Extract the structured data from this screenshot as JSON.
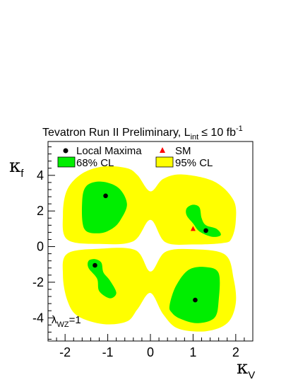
{
  "chart_data": {
    "type": "contour",
    "title": {
      "text": "Tevatron Run II Preliminary, L",
      "subscript": "int",
      "relation": "≤ 10 fb",
      "superscript": "-1"
    },
    "xlabel": {
      "symbol": "κ",
      "subscript": "V"
    },
    "ylabel": {
      "symbol": "κ",
      "subscript": "f"
    },
    "xlim": [
      -2.4,
      2.4
    ],
    "ylim": [
      -5.3,
      5.9
    ],
    "xticks": [
      -2,
      -1,
      0,
      1,
      2
    ],
    "yticks": [
      -4,
      -2,
      0,
      2,
      4
    ],
    "annotation": {
      "symbol": "λ",
      "subscript": "WZ",
      "suffix": "=1"
    },
    "legend": {
      "local_maxima": "Local Maxima",
      "sm": "SM",
      "cl68": "68% CL",
      "cl95": "95% CL"
    },
    "colors": {
      "cl95": "#ffff00",
      "cl68": "#00ee00",
      "sm": "#ff0000",
      "maxima": "#000000"
    },
    "local_maxima": [
      {
        "x": -1.05,
        "y": 2.85
      },
      {
        "x": 1.3,
        "y": 0.9
      },
      {
        "x": -1.3,
        "y": -1.05
      },
      {
        "x": 1.05,
        "y": -3.0
      }
    ],
    "sm_point": {
      "x": 1.0,
      "y": 1.0
    },
    "cl95_regions": [
      [
        [
          -1.95,
          0.4
        ],
        [
          -2.05,
          1.8
        ],
        [
          -1.95,
          3.2
        ],
        [
          -1.6,
          4.1
        ],
        [
          -1.1,
          4.5
        ],
        [
          -0.55,
          4.4
        ],
        [
          -0.3,
          4.0
        ],
        [
          0.0,
          3.1
        ],
        [
          0.3,
          3.8
        ],
        [
          0.75,
          4.05
        ],
        [
          1.5,
          3.65
        ],
        [
          1.95,
          2.6
        ],
        [
          2.0,
          1.4
        ],
        [
          1.9,
          0.45
        ],
        [
          1.7,
          0.2
        ],
        [
          1.0,
          0.12
        ],
        [
          0.35,
          0.25
        ],
        [
          0.0,
          1.5
        ],
        [
          -0.4,
          0.3
        ],
        [
          -1.2,
          0.15
        ]
      ],
      [
        [
          -1.95,
          -0.4
        ],
        [
          -2.05,
          -1.6
        ],
        [
          -1.95,
          -3.0
        ],
        [
          -1.7,
          -3.9
        ],
        [
          -1.1,
          -4.35
        ],
        [
          -0.55,
          -4.2
        ],
        [
          -0.3,
          -3.5
        ],
        [
          0.0,
          -2.6
        ],
        [
          0.3,
          -3.8
        ],
        [
          0.65,
          -4.6
        ],
        [
          1.3,
          -4.75
        ],
        [
          1.8,
          -4.3
        ],
        [
          2.0,
          -3.2
        ],
        [
          1.95,
          -1.8
        ],
        [
          1.75,
          -0.45
        ],
        [
          1.0,
          -0.15
        ],
        [
          0.35,
          -0.3
        ],
        [
          0.0,
          -1.4
        ],
        [
          -0.35,
          -0.2
        ],
        [
          -1.2,
          -0.12
        ]
      ]
    ],
    "cl68_regions": [
      [
        [
          -1.55,
          1.0
        ],
        [
          -1.6,
          2.5
        ],
        [
          -1.5,
          3.4
        ],
        [
          -1.15,
          3.65
        ],
        [
          -0.75,
          3.3
        ],
        [
          -0.55,
          2.4
        ],
        [
          -0.7,
          1.5
        ],
        [
          -0.9,
          1.0
        ],
        [
          -1.2,
          0.75
        ]
      ],
      [
        [
          0.85,
          2.15
        ],
        [
          1.0,
          2.35
        ],
        [
          1.15,
          2.2
        ],
        [
          1.2,
          1.6
        ],
        [
          1.3,
          1.2
        ],
        [
          1.55,
          1.0
        ],
        [
          1.65,
          0.65
        ],
        [
          1.45,
          0.55
        ],
        [
          1.15,
          0.85
        ],
        [
          1.0,
          1.3
        ],
        [
          0.85,
          1.75
        ]
      ],
      [
        [
          -1.45,
          -0.8
        ],
        [
          -1.45,
          -1.2
        ],
        [
          -1.25,
          -1.8
        ],
        [
          -1.2,
          -2.5
        ],
        [
          -0.95,
          -2.9
        ],
        [
          -0.8,
          -2.6
        ],
        [
          -0.95,
          -1.9
        ],
        [
          -1.1,
          -1.45
        ],
        [
          -1.15,
          -0.9
        ],
        [
          -1.3,
          -0.7
        ]
      ],
      [
        [
          0.45,
          -3.3
        ],
        [
          0.6,
          -2.2
        ],
        [
          0.9,
          -1.3
        ],
        [
          1.3,
          -1.15
        ],
        [
          1.6,
          -1.5
        ],
        [
          1.6,
          -3.0
        ],
        [
          1.5,
          -4.0
        ],
        [
          1.1,
          -4.3
        ],
        [
          0.7,
          -4.05
        ],
        [
          0.5,
          -3.7
        ]
      ]
    ]
  }
}
